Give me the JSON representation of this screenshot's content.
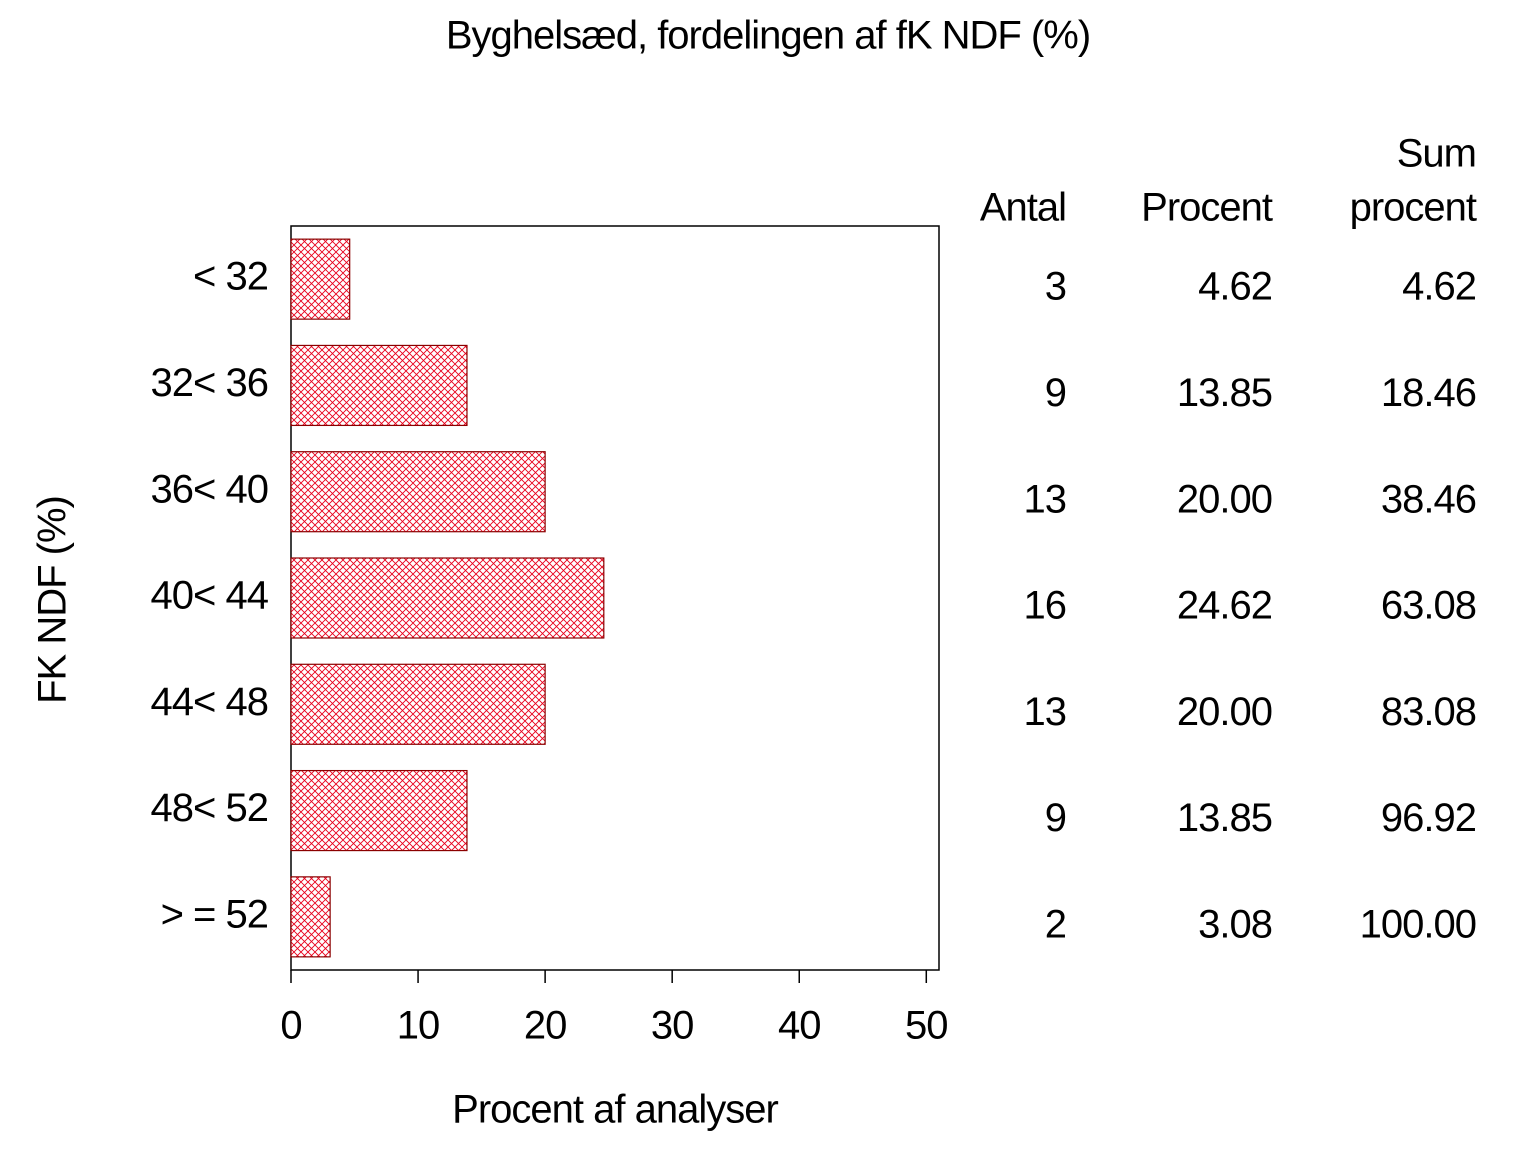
{
  "chart_data": {
    "type": "bar",
    "orientation": "horizontal",
    "title": "Byghelsæd, fordelingen af fK NDF (%)",
    "x_label": "Procent af analyser",
    "y_label": "FK NDF (%)",
    "categories": [
      "< 32",
      "32< 36",
      "36< 40",
      "40< 44",
      "44< 48",
      "48< 52",
      "> = 52"
    ],
    "values": [
      4.62,
      13.85,
      20.0,
      24.62,
      20.0,
      13.85,
      3.08
    ],
    "value_labels": [
      "4.62",
      "13.85",
      "20.00",
      "24.62",
      "20.00",
      "13.85",
      "3.08"
    ],
    "color": "#e8001c",
    "xlim": [
      0,
      51
    ],
    "xticks": [
      0,
      10,
      20,
      30,
      40,
      50
    ]
  },
  "table": {
    "headers": {
      "count": [
        "Antal"
      ],
      "percent": [
        "Procent"
      ],
      "cumulative": [
        "Sum",
        "procent"
      ]
    },
    "count": [
      3,
      9,
      13,
      16,
      13,
      9,
      2
    ],
    "cumulative": [
      "4.62",
      "18.46",
      "38.46",
      "63.08",
      "83.08",
      "96.92",
      "100.00"
    ]
  }
}
